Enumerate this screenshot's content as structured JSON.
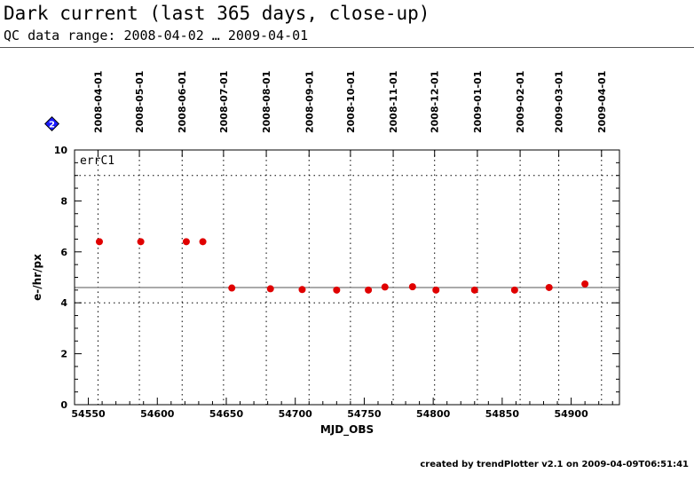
{
  "header": {
    "title": "Dark current (last 365 days, close-up)",
    "subtitle": "QC data range: 2008-04-02 … 2009-04-01"
  },
  "footer": {
    "text": "created by trendPlotter v2.1 on 2009-04-09T06:51:41"
  },
  "help_icon": {
    "glyph": "2",
    "color": "#1a1aff"
  },
  "chart_data": {
    "type": "scatter",
    "title": "Dark current (last 365 days, close-up)",
    "xlabel": "MJD_OBS",
    "ylabel": "e-/hr/px",
    "xlim": [
      54540,
      54935
    ],
    "ylim": [
      0,
      10
    ],
    "x_ticks": [
      54550,
      54600,
      54650,
      54700,
      54750,
      54800,
      54850,
      54900
    ],
    "y_ticks": [
      0,
      2,
      4,
      6,
      8,
      10
    ],
    "top_axis_dates": [
      {
        "label": "2008-04-01",
        "mjd": 54557
      },
      {
        "label": "2008-05-01",
        "mjd": 54587
      },
      {
        "label": "2008-06-01",
        "mjd": 54618
      },
      {
        "label": "2008-07-01",
        "mjd": 54648
      },
      {
        "label": "2008-08-01",
        "mjd": 54679
      },
      {
        "label": "2008-09-01",
        "mjd": 54710
      },
      {
        "label": "2008-10-01",
        "mjd": 54740
      },
      {
        "label": "2008-11-01",
        "mjd": 54771
      },
      {
        "label": "2008-12-01",
        "mjd": 54801
      },
      {
        "label": "2009-01-01",
        "mjd": 54832
      },
      {
        "label": "2009-02-01",
        "mjd": 54863
      },
      {
        "label": "2009-03-01",
        "mjd": 54891
      },
      {
        "label": "2009-04-01",
        "mjd": 54922
      }
    ],
    "panel_label": "errC1",
    "reference_line": 4.6,
    "threshold_lines": [
      4.0,
      9.0
    ],
    "point_color": "#e00000",
    "series": [
      {
        "x": [
          54558,
          54588,
          54621,
          54633,
          54654,
          54682,
          54705,
          54730,
          54753,
          54765,
          54785,
          54802,
          54830,
          54859,
          54884,
          54910
        ],
        "y": [
          6.4,
          6.4,
          6.4,
          6.4,
          4.58,
          4.55,
          4.52,
          4.5,
          4.5,
          4.62,
          4.63,
          4.5,
          4.5,
          4.5,
          4.6,
          4.74
        ]
      }
    ],
    "grid": true
  }
}
